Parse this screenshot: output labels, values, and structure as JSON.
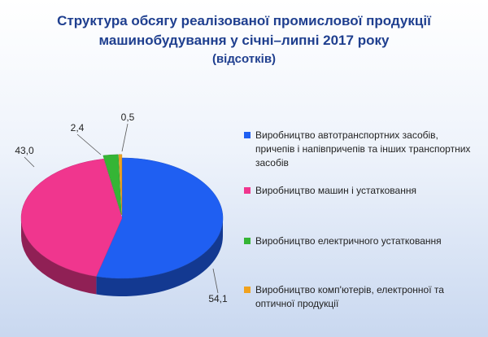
{
  "chart_data": {
    "type": "pie",
    "title": "Структура обсягу реалізованої промислової продукції машинобудування у січні–липні 2017 року",
    "subtitle": "(відсотків)",
    "categories": [
      "Виробництво автотранспортних засобів, причепів і напівпричепів та інших транспортних засобів",
      "Виробництво машин і устатковання",
      "Виробництво електричного устатковання",
      "Виробництво комп'ютерів, електронної та оптичної продукції"
    ],
    "values": [
      54.1,
      43.0,
      2.4,
      0.5
    ],
    "value_labels": [
      "54,1",
      "43,0",
      "2,4",
      "0,5"
    ],
    "colors": [
      "#1f5ff2",
      "#f0368e",
      "#35b535",
      "#f0a21e"
    ],
    "legend": "right"
  }
}
